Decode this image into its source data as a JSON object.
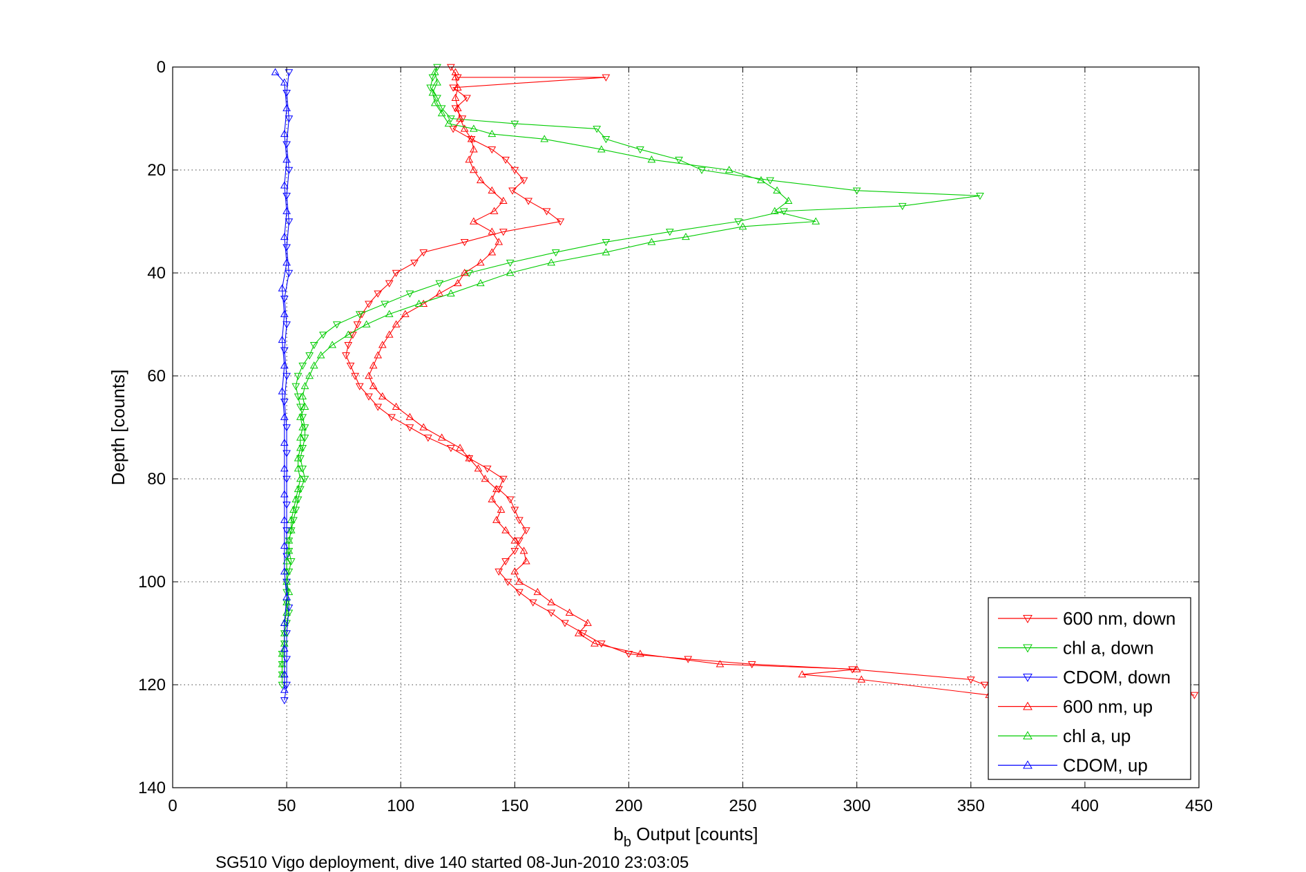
{
  "chart_data": {
    "type": "line",
    "title": "",
    "caption": "SG510 Vigo deployment, dive 140 started 08-Jun-2010 23:03:05",
    "xlabel_main": "b",
    "xlabel_sub": "b",
    "xlabel_rest": " Output [counts]",
    "ylabel": "Depth [counts]",
    "xlim": [
      0,
      450
    ],
    "ylim": [
      0,
      140
    ],
    "y_reversed": true,
    "xticks": [
      "0",
      "50",
      "100",
      "150",
      "200",
      "250",
      "300",
      "350",
      "400",
      "450"
    ],
    "yticks": [
      "0",
      "20",
      "40",
      "60",
      "80",
      "100",
      "120",
      "140"
    ],
    "grid": true,
    "legend_position": "bottom-right",
    "series": [
      {
        "name": "600 nm, down",
        "color": "#ff0000",
        "marker": "triangle-down",
        "points": [
          [
            122,
            0
          ],
          [
            125,
            2
          ],
          [
            190,
            2
          ],
          [
            123,
            4
          ],
          [
            129,
            6
          ],
          [
            124,
            8
          ],
          [
            127,
            10
          ],
          [
            123,
            12
          ],
          [
            131,
            14
          ],
          [
            140,
            16
          ],
          [
            146,
            18
          ],
          [
            150,
            20
          ],
          [
            154,
            22
          ],
          [
            149,
            24
          ],
          [
            156,
            26
          ],
          [
            164,
            28
          ],
          [
            170,
            30
          ],
          [
            145,
            32
          ],
          [
            128,
            34
          ],
          [
            110,
            36
          ],
          [
            106,
            38
          ],
          [
            98,
            40
          ],
          [
            95,
            42
          ],
          [
            90,
            44
          ],
          [
            86,
            46
          ],
          [
            83,
            48
          ],
          [
            81,
            50
          ],
          [
            79,
            52
          ],
          [
            77,
            54
          ],
          [
            76,
            56
          ],
          [
            78,
            58
          ],
          [
            80,
            60
          ],
          [
            82,
            62
          ],
          [
            86,
            64
          ],
          [
            90,
            66
          ],
          [
            96,
            68
          ],
          [
            104,
            70
          ],
          [
            112,
            72
          ],
          [
            122,
            74
          ],
          [
            130,
            76
          ],
          [
            138,
            78
          ],
          [
            145,
            80
          ],
          [
            143,
            82
          ],
          [
            148,
            84
          ],
          [
            150,
            86
          ],
          [
            152,
            88
          ],
          [
            155,
            90
          ],
          [
            152,
            92
          ],
          [
            150,
            94
          ],
          [
            146,
            96
          ],
          [
            143,
            98
          ],
          [
            147,
            100
          ],
          [
            152,
            102
          ],
          [
            158,
            104
          ],
          [
            166,
            106
          ],
          [
            172,
            108
          ],
          [
            180,
            110
          ],
          [
            188,
            112
          ],
          [
            200,
            114
          ],
          [
            226,
            115
          ],
          [
            254,
            116
          ],
          [
            298,
            117
          ],
          [
            350,
            119
          ],
          [
            356,
            120
          ],
          [
            448,
            122
          ]
        ]
      },
      {
        "name": "chl a, down",
        "color": "#00cc00",
        "marker": "triangle-down",
        "points": [
          [
            116,
            0
          ],
          [
            114,
            2
          ],
          [
            113,
            4
          ],
          [
            116,
            6
          ],
          [
            118,
            8
          ],
          [
            122,
            10
          ],
          [
            150,
            11
          ],
          [
            186,
            12
          ],
          [
            190,
            14
          ],
          [
            205,
            16
          ],
          [
            222,
            18
          ],
          [
            232,
            20
          ],
          [
            262,
            22
          ],
          [
            300,
            24
          ],
          [
            354,
            25
          ],
          [
            320,
            27
          ],
          [
            268,
            28
          ],
          [
            248,
            30
          ],
          [
            218,
            32
          ],
          [
            190,
            34
          ],
          [
            168,
            36
          ],
          [
            148,
            38
          ],
          [
            130,
            40
          ],
          [
            117,
            42
          ],
          [
            104,
            44
          ],
          [
            93,
            46
          ],
          [
            82,
            48
          ],
          [
            72,
            50
          ],
          [
            66,
            52
          ],
          [
            62,
            54
          ],
          [
            60,
            56
          ],
          [
            57,
            58
          ],
          [
            55,
            60
          ],
          [
            54,
            62
          ],
          [
            55,
            64
          ],
          [
            56,
            66
          ],
          [
            57,
            68
          ],
          [
            58,
            70
          ],
          [
            58,
            72
          ],
          [
            57,
            74
          ],
          [
            56,
            76
          ],
          [
            57,
            78
          ],
          [
            58,
            80
          ],
          [
            56,
            82
          ],
          [
            55,
            84
          ],
          [
            54,
            86
          ],
          [
            53,
            88
          ],
          [
            52,
            90
          ],
          [
            51,
            92
          ],
          [
            51,
            94
          ],
          [
            52,
            96
          ],
          [
            51,
            98
          ],
          [
            50,
            100
          ],
          [
            50,
            102
          ],
          [
            50,
            104
          ],
          [
            51,
            106
          ],
          [
            50,
            108
          ],
          [
            49,
            110
          ],
          [
            49,
            112
          ],
          [
            48,
            114
          ],
          [
            48,
            116
          ],
          [
            48,
            118
          ],
          [
            48,
            120
          ]
        ]
      },
      {
        "name": "CDOM, down",
        "color": "#0000ff",
        "marker": "triangle-down",
        "points": [
          [
            51,
            1
          ],
          [
            50,
            5
          ],
          [
            51,
            10
          ],
          [
            50,
            15
          ],
          [
            51,
            20
          ],
          [
            50,
            25
          ],
          [
            51,
            30
          ],
          [
            50,
            35
          ],
          [
            51,
            40
          ],
          [
            49,
            45
          ],
          [
            50,
            50
          ],
          [
            49,
            55
          ],
          [
            50,
            60
          ],
          [
            49,
            65
          ],
          [
            50,
            70
          ],
          [
            50,
            75
          ],
          [
            50,
            80
          ],
          [
            50,
            85
          ],
          [
            50,
            90
          ],
          [
            50,
            95
          ],
          [
            50,
            100
          ],
          [
            51,
            105
          ],
          [
            50,
            110
          ],
          [
            50,
            115
          ],
          [
            50,
            120
          ],
          [
            49,
            123
          ]
        ]
      },
      {
        "name": "600 nm, up",
        "color": "#ff0000",
        "marker": "triangle-up",
        "points": [
          [
            358,
            122
          ],
          [
            302,
            119
          ],
          [
            276,
            118
          ],
          [
            300,
            117
          ],
          [
            240,
            116
          ],
          [
            205,
            114
          ],
          [
            185,
            112
          ],
          [
            178,
            110
          ],
          [
            182,
            108
          ],
          [
            174,
            106
          ],
          [
            166,
            104
          ],
          [
            160,
            102
          ],
          [
            152,
            100
          ],
          [
            150,
            98
          ],
          [
            155,
            96
          ],
          [
            154,
            94
          ],
          [
            150,
            92
          ],
          [
            146,
            90
          ],
          [
            142,
            88
          ],
          [
            144,
            86
          ],
          [
            140,
            84
          ],
          [
            142,
            82
          ],
          [
            137,
            80
          ],
          [
            134,
            78
          ],
          [
            130,
            76
          ],
          [
            126,
            74
          ],
          [
            118,
            72
          ],
          [
            110,
            70
          ],
          [
            104,
            68
          ],
          [
            98,
            66
          ],
          [
            92,
            64
          ],
          [
            88,
            62
          ],
          [
            86,
            60
          ],
          [
            88,
            58
          ],
          [
            90,
            56
          ],
          [
            92,
            54
          ],
          [
            95,
            52
          ],
          [
            98,
            50
          ],
          [
            102,
            48
          ],
          [
            110,
            46
          ],
          [
            117,
            44
          ],
          [
            125,
            42
          ],
          [
            128,
            40
          ],
          [
            135,
            38
          ],
          [
            140,
            36
          ],
          [
            143,
            34
          ],
          [
            140,
            32
          ],
          [
            132,
            30
          ],
          [
            141,
            28
          ],
          [
            145,
            26
          ],
          [
            140,
            24
          ],
          [
            135,
            22
          ],
          [
            132,
            20
          ],
          [
            130,
            18
          ],
          [
            132,
            16
          ],
          [
            131,
            14
          ],
          [
            128,
            12
          ],
          [
            126,
            10
          ],
          [
            125,
            8
          ],
          [
            124,
            6
          ],
          [
            125,
            4
          ],
          [
            124,
            2
          ],
          [
            124,
            1
          ]
        ]
      },
      {
        "name": "chl a, up",
        "color": "#00cc00",
        "marker": "triangle-up",
        "points": [
          [
            115,
            1
          ],
          [
            116,
            3
          ],
          [
            114,
            5
          ],
          [
            115,
            7
          ],
          [
            118,
            9
          ],
          [
            121,
            11
          ],
          [
            132,
            12
          ],
          [
            140,
            13
          ],
          [
            163,
            14
          ],
          [
            188,
            16
          ],
          [
            210,
            18
          ],
          [
            244,
            20
          ],
          [
            258,
            22
          ],
          [
            265,
            24
          ],
          [
            270,
            26
          ],
          [
            264,
            28
          ],
          [
            282,
            30
          ],
          [
            250,
            31
          ],
          [
            225,
            33
          ],
          [
            210,
            34
          ],
          [
            190,
            36
          ],
          [
            166,
            38
          ],
          [
            148,
            40
          ],
          [
            135,
            42
          ],
          [
            122,
            44
          ],
          [
            108,
            46
          ],
          [
            95,
            48
          ],
          [
            85,
            50
          ],
          [
            77,
            52
          ],
          [
            70,
            54
          ],
          [
            65,
            56
          ],
          [
            62,
            58
          ],
          [
            60,
            60
          ],
          [
            58,
            62
          ],
          [
            57,
            64
          ],
          [
            58,
            66
          ],
          [
            56,
            68
          ],
          [
            57,
            70
          ],
          [
            56,
            72
          ],
          [
            56,
            74
          ],
          [
            55,
            76
          ],
          [
            55,
            78
          ],
          [
            56,
            80
          ],
          [
            55,
            82
          ],
          [
            54,
            84
          ],
          [
            53,
            86
          ],
          [
            52,
            88
          ],
          [
            52,
            90
          ],
          [
            51,
            92
          ],
          [
            51,
            94
          ],
          [
            50,
            96
          ],
          [
            50,
            98
          ],
          [
            50,
            100
          ],
          [
            51,
            102
          ],
          [
            50,
            104
          ],
          [
            50,
            106
          ],
          [
            49,
            108
          ],
          [
            49,
            110
          ],
          [
            49,
            112
          ],
          [
            48,
            114
          ],
          [
            48,
            116
          ],
          [
            48,
            118
          ]
        ]
      },
      {
        "name": "CDOM, up",
        "color": "#0000ff",
        "marker": "triangle-up",
        "points": [
          [
            45,
            1
          ],
          [
            49,
            3
          ],
          [
            50,
            8
          ],
          [
            49,
            13
          ],
          [
            50,
            18
          ],
          [
            49,
            23
          ],
          [
            50,
            28
          ],
          [
            49,
            33
          ],
          [
            50,
            38
          ],
          [
            48,
            43
          ],
          [
            49,
            48
          ],
          [
            48,
            53
          ],
          [
            49,
            58
          ],
          [
            48,
            63
          ],
          [
            49,
            68
          ],
          [
            49,
            73
          ],
          [
            49,
            78
          ],
          [
            49,
            83
          ],
          [
            49,
            88
          ],
          [
            49,
            93
          ],
          [
            49,
            98
          ],
          [
            50,
            103
          ],
          [
            49,
            108
          ],
          [
            49,
            113
          ],
          [
            49,
            118
          ],
          [
            49,
            121
          ]
        ]
      }
    ]
  }
}
